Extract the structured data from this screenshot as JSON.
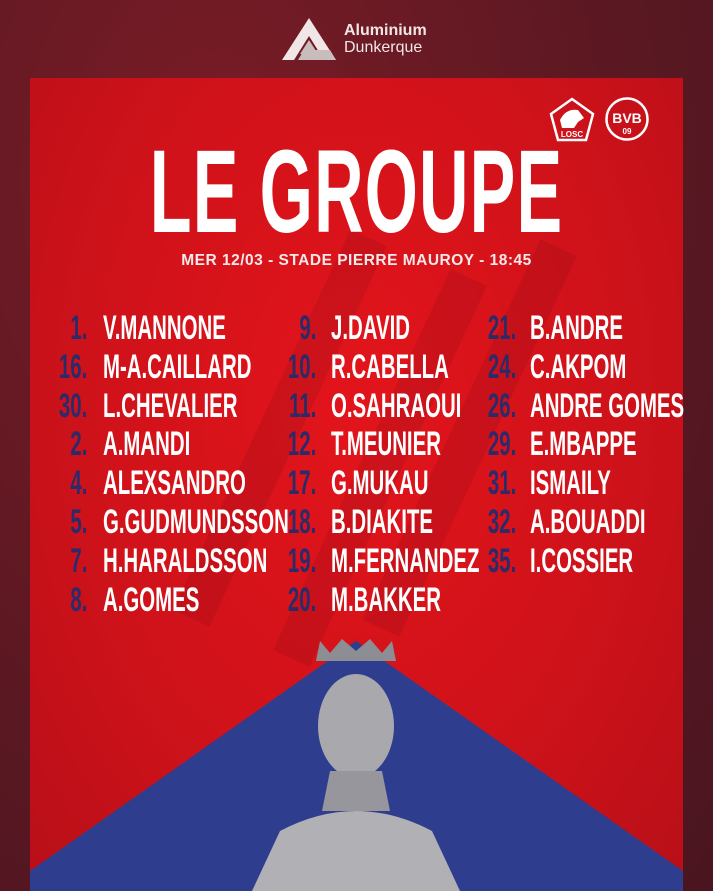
{
  "sponsor": {
    "line1": "Aluminium",
    "line2": "Dunkerque"
  },
  "badges": [
    {
      "name": "LOSC",
      "text": "LOSC"
    },
    {
      "name": "BVB",
      "text": "BVB",
      "sub": "09"
    }
  ],
  "title": "LE GROUPE",
  "subtitle": "MER 12/03 - STADE PIERRE MAUROY - 18:45",
  "colors": {
    "background": "#5e1a24",
    "panel": "#d8131a",
    "number": "#2d2a6a",
    "name": "#ffffff",
    "triangle": "#2f3d8f"
  },
  "columns": [
    [
      {
        "num": "1.",
        "name": "V.MANNONE"
      },
      {
        "num": "16.",
        "name": "M-A.CAILLARD"
      },
      {
        "num": "30.",
        "name": "L.CHEVALIER"
      },
      {
        "num": "2.",
        "name": "A.MANDI"
      },
      {
        "num": "4.",
        "name": "ALEXSANDRO"
      },
      {
        "num": "5.",
        "name": "G.GUDMUNDSSON"
      },
      {
        "num": "7.",
        "name": "H.HARALDSSON"
      },
      {
        "num": "8.",
        "name": "A.GOMES"
      }
    ],
    [
      {
        "num": "9.",
        "name": "J.DAVID"
      },
      {
        "num": "10.",
        "name": "R.CABELLA"
      },
      {
        "num": "11.",
        "name": "O.SAHRAOUI"
      },
      {
        "num": "12.",
        "name": "T.MEUNIER"
      },
      {
        "num": "17.",
        "name": "G.MUKAU"
      },
      {
        "num": "18.",
        "name": "B.DIAKITE"
      },
      {
        "num": "19.",
        "name": "M.FERNANDEZ"
      },
      {
        "num": "20.",
        "name": "M.BAKKER"
      }
    ],
    [
      {
        "num": "21.",
        "name": "B.ANDRE"
      },
      {
        "num": "24.",
        "name": "C.AKPOM"
      },
      {
        "num": "26.",
        "name": "ANDRE GOMES"
      },
      {
        "num": "29.",
        "name": "E.MBAPPE"
      },
      {
        "num": "31.",
        "name": "ISMAILY"
      },
      {
        "num": "32.",
        "name": "A.BOUADDI"
      },
      {
        "num": "35.",
        "name": "I.COSSIER"
      }
    ]
  ]
}
